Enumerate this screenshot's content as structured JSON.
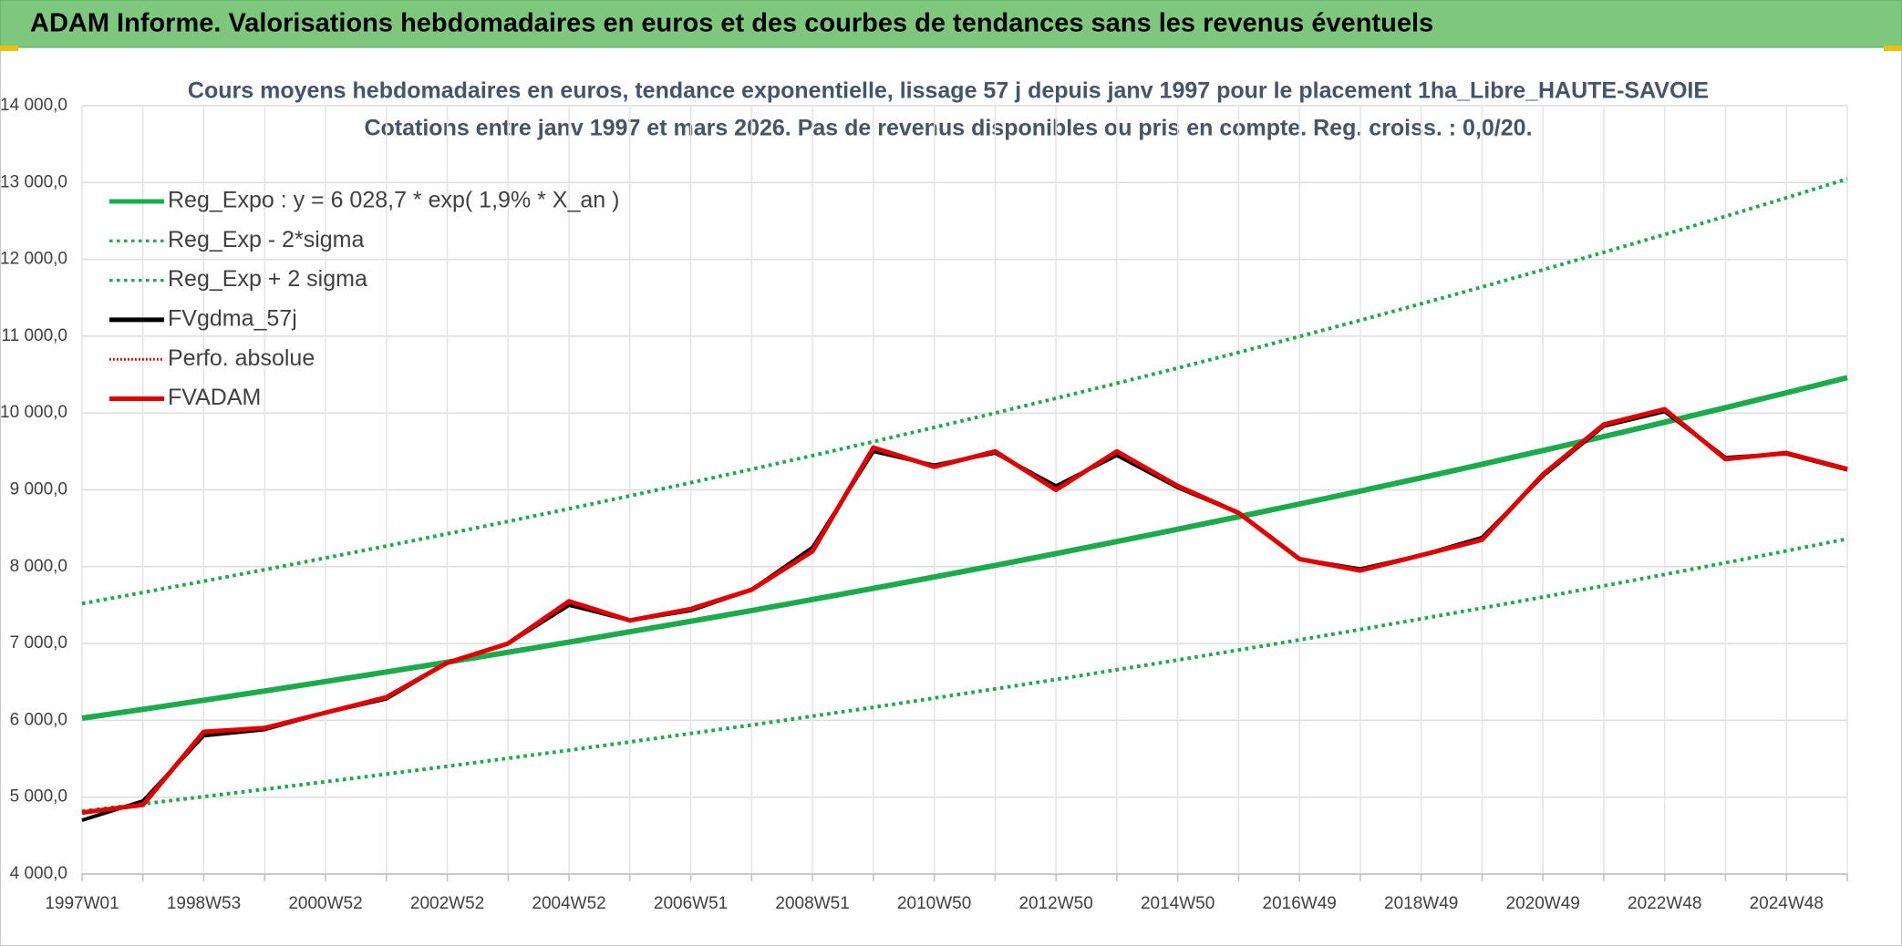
{
  "chart_data": {
    "type": "line",
    "header": "ADAM Informe. Valorisations hebdomadaires en euros et des courbes de tendances sans les revenus éventuels",
    "title": "Cours moyens hebdomadaires en euros, tendance exponentielle, lissage 57 j depuis janv 1997 pour le placement 1ha_Libre_HAUTE-SAVOIE",
    "subtitle": "Cotations entre janv 1997 et mars 2026. Pas de revenus disponibles ou pris en compte. Reg. croiss. : 0,0/20.",
    "categories": [
      "1997W01",
      null,
      "1998W53",
      null,
      "2000W52",
      null,
      "2002W52",
      null,
      "2004W52",
      null,
      "2006W51",
      null,
      "2008W51",
      null,
      "2010W50",
      null,
      "2012W50",
      null,
      "2014W50",
      null,
      "2016W49",
      null,
      "2018W49",
      null,
      "2020W49",
      null,
      "2022W48",
      null,
      "2024W48",
      null
    ],
    "ylim": [
      4000,
      14000
    ],
    "yticks": [
      {
        "value": 4000,
        "label": "4 000,0"
      },
      {
        "value": 5000,
        "label": "5 000,0"
      },
      {
        "value": 6000,
        "label": "6 000,0"
      },
      {
        "value": 7000,
        "label": "7 000,0"
      },
      {
        "value": 8000,
        "label": "8 000,0"
      },
      {
        "value": 9000,
        "label": "9 000,0"
      },
      {
        "value": 10000,
        "label": "10 000,0"
      },
      {
        "value": 11000,
        "label": "11 000,0"
      },
      {
        "value": 12000,
        "label": "12 000,0"
      },
      {
        "value": 13000,
        "label": "13 000,0"
      },
      {
        "value": 14000,
        "label": "14 000,0"
      }
    ],
    "grid": true,
    "legend": "top-left",
    "series": [
      {
        "name": "Reg_Expo : y = 6 028,7 * exp( 1,9% *  X_an )",
        "color": "#1aab4b",
        "style": "solid",
        "width": 6,
        "values": [
          6029,
          6144,
          6262,
          6382,
          6505,
          6630,
          6757,
          6886,
          7018,
          7153,
          7290,
          7430,
          7573,
          7718,
          7866,
          8017,
          8171,
          8327,
          8487,
          8650,
          8816,
          8985,
          9157,
          9333,
          9512,
          9694,
          9880,
          10070,
          10263,
          10460
        ]
      },
      {
        "name": "Reg_Exp - 2*sigma",
        "color": "#1aab4b",
        "style": "dotted",
        "width": 4,
        "values": [
          4820,
          4912,
          5007,
          5103,
          5201,
          5300,
          5402,
          5506,
          5611,
          5719,
          5829,
          5940,
          6054,
          6170,
          6289,
          6409,
          6532,
          6658,
          6785,
          6916,
          7048,
          7183,
          7321,
          7462,
          7605,
          7751,
          7899,
          8051,
          8205,
          8363
        ]
      },
      {
        "name": "Reg_Exp + 2 sigma",
        "color": "#1aab4b",
        "style": "dotted",
        "width": 4,
        "values": [
          7520,
          7664,
          7811,
          7961,
          8114,
          8269,
          8428,
          8590,
          8755,
          8922,
          9094,
          9268,
          9446,
          9627,
          9812,
          10000,
          10192,
          10387,
          10586,
          10789,
          10996,
          11207,
          11422,
          11641,
          11865,
          12092,
          12324,
          12561,
          12802,
          13047
        ]
      },
      {
        "name": "FVgdma_57j",
        "color": "#000000",
        "style": "solid",
        "width": 4,
        "values": [
          4700,
          4950,
          5800,
          5880,
          6100,
          6280,
          6750,
          7000,
          7500,
          7300,
          7430,
          7700,
          8250,
          9500,
          9320,
          9480,
          9050,
          9450,
          9030,
          8700,
          8100,
          7970,
          8150,
          8380,
          9180,
          9830,
          10020,
          9420,
          9470,
          9260
        ]
      },
      {
        "name": "Perfo. absolue",
        "color": "#e00000",
        "style": "dotted",
        "width": 2,
        "values": [
          4800,
          4900,
          5850,
          5900,
          6100,
          6300,
          6750,
          7000,
          7550,
          7300,
          7450,
          7700,
          8200,
          9550,
          9300,
          9500,
          9000,
          9500,
          9050,
          8700,
          8100,
          7950,
          8150,
          8350,
          9200,
          9850,
          10050,
          9400,
          9480,
          9270
        ]
      },
      {
        "name": "FVADAM",
        "color": "#e00000",
        "style": "solid",
        "width": 5,
        "values": [
          4800,
          4900,
          5850,
          5900,
          6100,
          6300,
          6750,
          7000,
          7550,
          7300,
          7450,
          7700,
          8200,
          9550,
          9300,
          9500,
          9000,
          9500,
          9050,
          8700,
          8100,
          7950,
          8150,
          8350,
          9200,
          9850,
          10050,
          9400,
          9480,
          9270
        ]
      }
    ]
  }
}
